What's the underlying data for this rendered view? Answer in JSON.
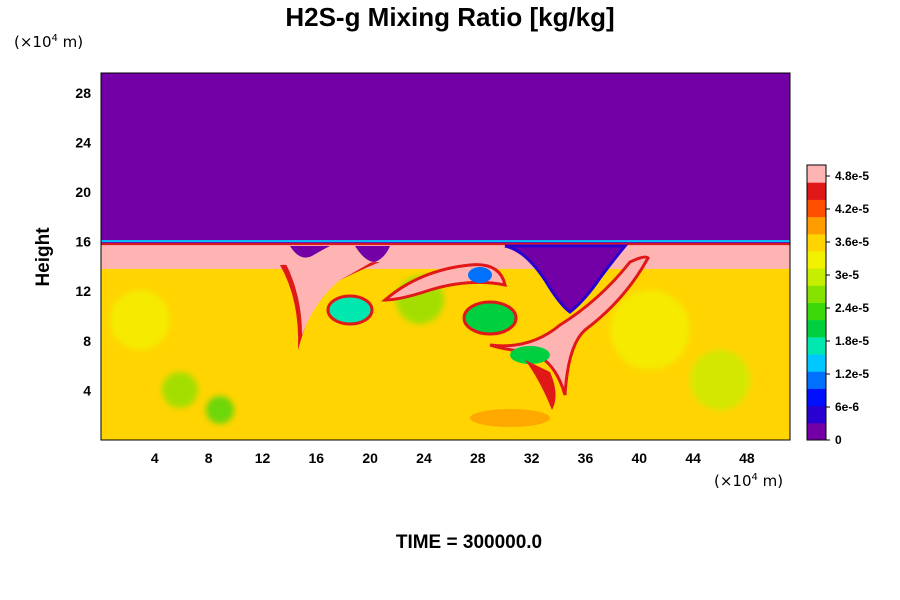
{
  "chart_data": {
    "type": "heatmap",
    "title": "H2S-g Mixing Ratio [kg/kg]",
    "ylabel": "Height",
    "xlabel": "",
    "x_unit": {
      "prefix": "(×10",
      "exp": "4",
      "suffix": " m)"
    },
    "y_unit": {
      "prefix": "(×10",
      "exp": "4",
      "suffix": " m)"
    },
    "xlim": [
      0,
      51.2
    ],
    "ylim": [
      0,
      29.6
    ],
    "x_ticks": [
      "4",
      "8",
      "12",
      "16",
      "20",
      "24",
      "28",
      "32",
      "36",
      "40",
      "44",
      "48"
    ],
    "y_ticks": [
      "4",
      "8",
      "12",
      "16",
      "20",
      "24",
      "28"
    ],
    "colorbar": {
      "min": 0,
      "max": 5e-05,
      "tick_labels": [
        "0",
        "6e-6",
        "1.2e-5",
        "1.8e-5",
        "2.4e-5",
        "3e-5",
        "3.6e-5",
        "4.2e-5",
        "4.8e-5"
      ],
      "tick_values": [
        0,
        6e-06,
        1.2e-05,
        1.8e-05,
        2.4e-05,
        3e-05,
        3.6e-05,
        4.2e-05,
        4.8e-05
      ],
      "colors": [
        "#7300a6",
        "#2800d0",
        "#0010ff",
        "#0070ff",
        "#00c8ff",
        "#00e8b0",
        "#00d040",
        "#3cd80a",
        "#86e200",
        "#c6ee00",
        "#f2f200",
        "#ffd400",
        "#ff9c00",
        "#ff5000",
        "#e01818",
        "#ffb4b4"
      ]
    },
    "field_regions": [
      {
        "name": "upper layer",
        "y_range": [
          15.8,
          29.6
        ],
        "value": 0
      },
      {
        "name": "high-ratio band",
        "y_range": [
          13.8,
          15.8
        ],
        "value": 5e-05
      },
      {
        "name": "lower layer",
        "y_range": [
          0,
          13.8
        ],
        "value": 3.5e-05
      }
    ],
    "time_label": "TIME = 300000.0"
  }
}
